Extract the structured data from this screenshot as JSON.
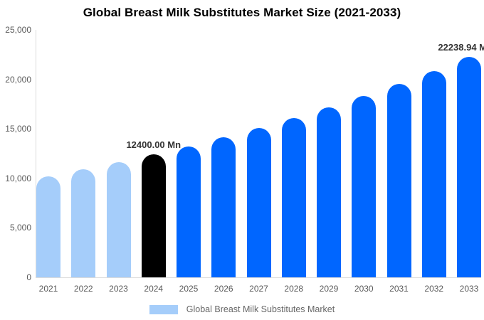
{
  "title": "Global Breast Milk Substitutes Market Size (2021-2033)",
  "chart_data": {
    "type": "bar",
    "title": "Global Breast Milk Substitutes Market Size (2021-2033)",
    "categories": [
      "2021",
      "2022",
      "2023",
      "2024",
      "2025",
      "2026",
      "2027",
      "2028",
      "2029",
      "2030",
      "2031",
      "2032",
      "2033"
    ],
    "values": [
      10206,
      10890,
      11621,
      12400,
      13232,
      14119,
      15066,
      16076,
      17154,
      18304,
      19532,
      20841,
      22238.94
    ],
    "xlabel": "",
    "ylabel": "",
    "ylim": [
      0,
      25000
    ],
    "yticks": [
      0,
      5000,
      10000,
      15000,
      20000,
      25000
    ],
    "ytick_labels": [
      "0",
      "5,000",
      "10,000",
      "15,000",
      "20,000",
      "25,000"
    ],
    "grid": false,
    "bar_colors": [
      "#A5CDFA",
      "#A5CDFA",
      "#A5CDFA",
      "#000000",
      "#0066FF",
      "#0066FF",
      "#0066FF",
      "#0066FF",
      "#0066FF",
      "#0066FF",
      "#0066FF",
      "#0066FF",
      "#0066FF"
    ],
    "annotations": [
      {
        "category": "2024",
        "text": "12400.00 Mn",
        "align": "center"
      },
      {
        "category": "2033",
        "text": "22238.94 M",
        "align": "right"
      }
    ],
    "legend_position": "bottom-center",
    "legend": [
      {
        "label": "Global Breast Milk Substitutes Market",
        "color": "#A5CDFA"
      }
    ]
  },
  "colors": {
    "series_light_blue": "#A5CDFA",
    "series_blue": "#0066FF",
    "highlight_black": "#000000",
    "axis_line": "#DCDCDC",
    "axis_text": "#595959",
    "annotation_text": "#333333",
    "legend_text": "#666666",
    "background": "#FFFFFF"
  }
}
